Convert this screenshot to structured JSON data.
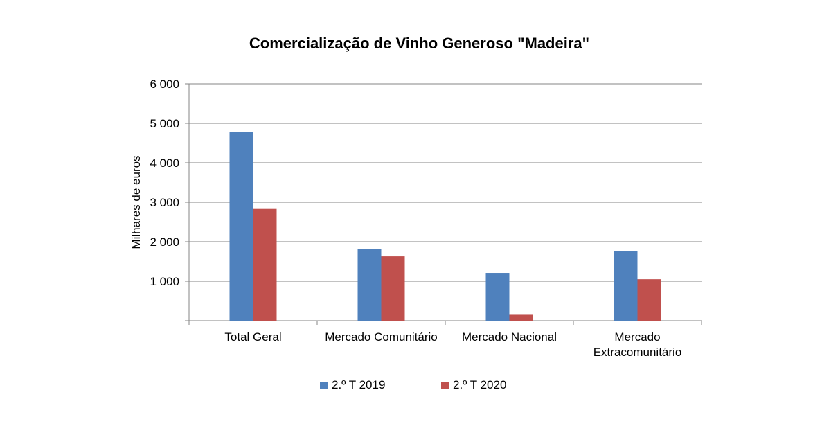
{
  "chart_data": {
    "type": "bar",
    "title": "Comercialização de Vinho Generoso \"Madeira\"",
    "ylabel": "Milhares de euros",
    "xlabel": "",
    "ylim": [
      0,
      6000
    ],
    "yticks": [
      1000,
      2000,
      3000,
      4000,
      5000,
      6000
    ],
    "ytick_labels": [
      "1 000",
      "2 000",
      "3 000",
      "4 000",
      "5 000",
      "6 000"
    ],
    "categories": [
      [
        "Total Geral"
      ],
      [
        "Mercado Comunitário"
      ],
      [
        "Mercado Nacional"
      ],
      [
        "Mercado",
        "Extracomunitário"
      ]
    ],
    "series": [
      {
        "name": "2.º T 2019",
        "color": "#4f81bd",
        "values": [
          4780,
          1810,
          1210,
          1760
        ]
      },
      {
        "name": "2.º T 2020",
        "color": "#c0504d",
        "values": [
          2830,
          1630,
          150,
          1050
        ]
      }
    ],
    "grid": true,
    "legend_position": "bottom",
    "gridline_color": "#868686"
  }
}
